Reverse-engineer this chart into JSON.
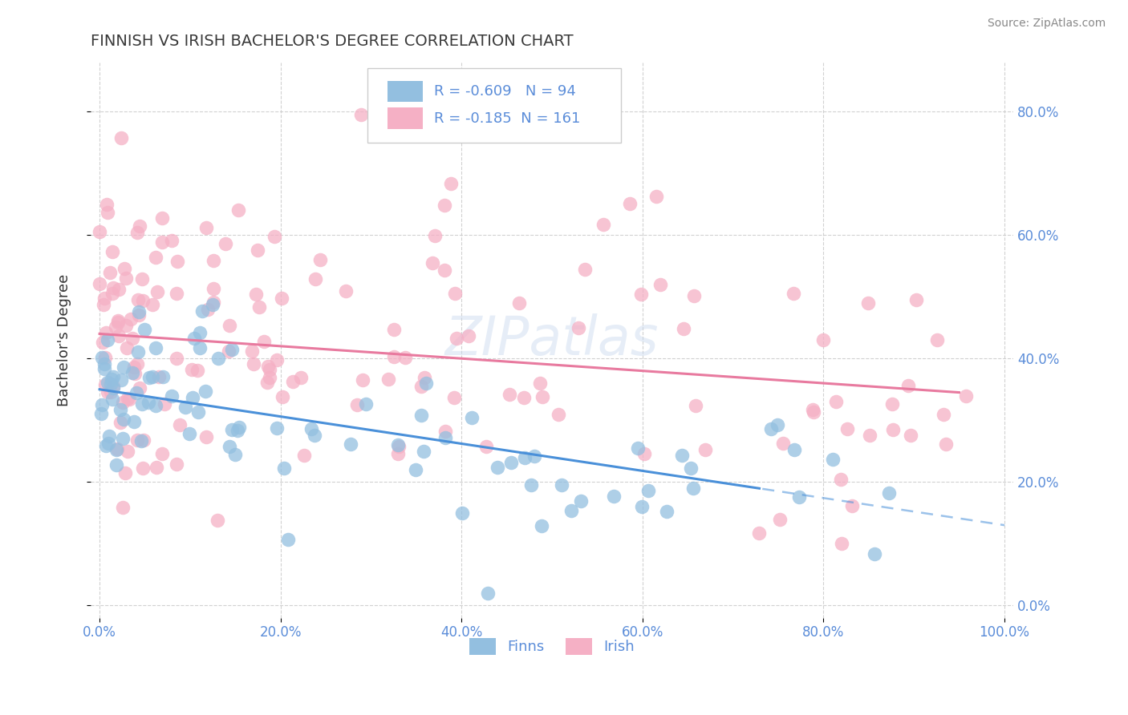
{
  "title": "FINNISH VS IRISH BACHELOR'S DEGREE CORRELATION CHART",
  "source": "Source: ZipAtlas.com",
  "ylabel": "Bachelor's Degree",
  "finn_color": "#93bfe0",
  "irish_color": "#f5b0c5",
  "finn_line_color": "#4a90d9",
  "irish_line_color": "#e87a9f",
  "finn_R": -0.609,
  "finn_N": 94,
  "irish_R": -0.185,
  "irish_N": 161,
  "watermark": "ZIPatlas",
  "background_color": "#ffffff",
  "grid_color": "#cccccc",
  "title_color": "#3a3a3a",
  "axis_color": "#5b8dd9",
  "legend_text_color": "#5b8dd9",
  "finn_line_intercept": 35.0,
  "finn_line_slope": -0.22,
  "irish_line_intercept": 44.0,
  "irish_line_slope": -0.1,
  "xlim": [
    -1,
    101
  ],
  "ylim": [
    -2,
    88
  ],
  "x_ticks": [
    0,
    20,
    40,
    60,
    80,
    100
  ],
  "y_ticks": [
    0,
    20,
    40,
    60,
    80
  ],
  "finn_solid_end": 73,
  "irish_solid_end": 95
}
